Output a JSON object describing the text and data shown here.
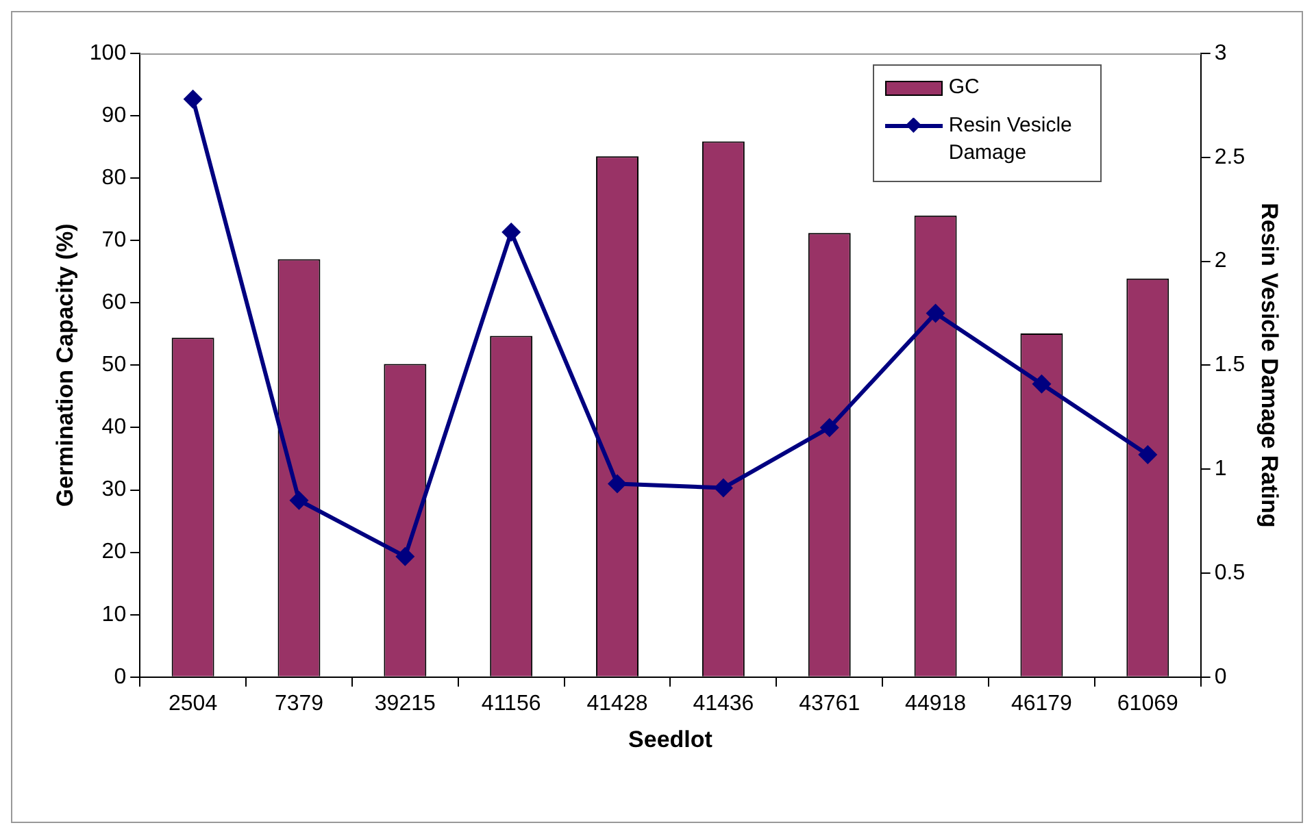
{
  "chart_data": {
    "type": "bar",
    "xlabel": "Seedlot",
    "ylabel": "Germination Capacity (%)",
    "y2label": "Resin Vesicle Damage Rating",
    "categories": [
      "2504",
      "7379",
      "39215",
      "41156",
      "41428",
      "41436",
      "43761",
      "44918",
      "46179",
      "61069"
    ],
    "series": [
      {
        "name": "GC",
        "color": "#993366",
        "values": [
          54.4,
          67.0,
          50.2,
          54.7,
          83.5,
          85.9,
          71.2,
          74.0,
          55.1,
          63.9
        ]
      },
      {
        "name": "Resin Vesicle Damage",
        "type": "line",
        "axis": "y2",
        "color": "#000080",
        "values": [
          2.78,
          0.85,
          0.58,
          2.14,
          0.93,
          0.91,
          1.2,
          1.75,
          1.41,
          1.07
        ]
      }
    ],
    "ylim": [
      0,
      100
    ],
    "yticks": [
      0,
      10,
      20,
      30,
      40,
      50,
      60,
      70,
      80,
      90,
      100
    ],
    "y2lim": [
      0,
      3
    ],
    "y2ticks": [
      0,
      0.5,
      1,
      1.5,
      2,
      2.5,
      3
    ],
    "grid": false,
    "legend": "top right",
    "marker": "diamond",
    "line_style": "solid"
  }
}
